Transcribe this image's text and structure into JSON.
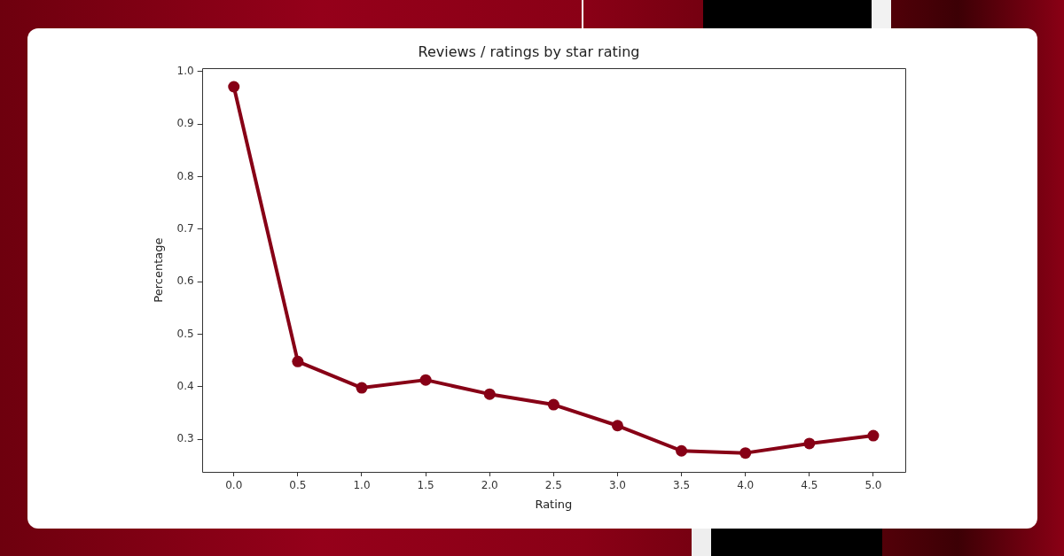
{
  "chart_data": {
    "type": "line",
    "title": "Reviews / ratings by star rating",
    "xlabel": "Rating",
    "ylabel": "Percentage",
    "categories": [
      "0.0",
      "0.5",
      "1.0",
      "1.5",
      "2.0",
      "2.5",
      "3.0",
      "3.5",
      "4.0",
      "4.5",
      "5.0"
    ],
    "values": [
      0.971,
      0.448,
      0.398,
      0.413,
      0.386,
      0.366,
      0.326,
      0.278,
      0.274,
      0.292,
      0.307
    ],
    "color": "#870016",
    "ylim": [
      0.238,
      1.006
    ],
    "yticks": [
      0.3,
      0.4,
      0.5,
      0.6,
      0.7,
      0.8,
      0.9,
      {
        "value": 1,
        "label": "1.0"
      }
    ],
    "marker": "circle",
    "line_style": "solid"
  }
}
